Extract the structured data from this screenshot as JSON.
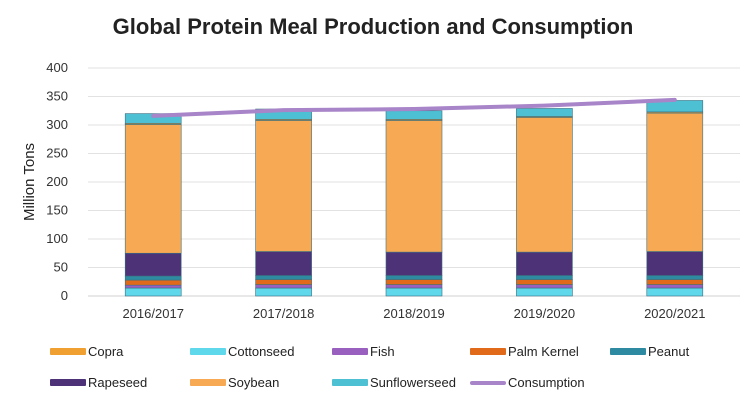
{
  "chart_data": {
    "type": "bar",
    "stacked": true,
    "title": "Global Protein Meal Production and Consumption",
    "xlabel": "",
    "ylabel": "Million Tons",
    "ylim": [
      0,
      400
    ],
    "yticks": [
      0,
      50,
      100,
      150,
      200,
      250,
      300,
      350,
      400
    ],
    "grid": true,
    "legend_position": "bottom",
    "categories": [
      "2016/2017",
      "2017/2018",
      "2018/2019",
      "2019/2020",
      "2020/2021"
    ],
    "stack_order": [
      "Cottonseed",
      "Fish",
      "Palm Kernel",
      "Peanut",
      "Rapeseed",
      "Soybean",
      "Copra",
      "Sunflowerseed"
    ],
    "series": [
      {
        "name": "Copra",
        "color": "#f0a030",
        "values": [
          2,
          2,
          2,
          2,
          2
        ]
      },
      {
        "name": "Cottonseed",
        "color": "#5fd8ec",
        "values": [
          14,
          14,
          14,
          14,
          14
        ]
      },
      {
        "name": "Fish",
        "color": "#9a60c0",
        "values": [
          5,
          6,
          6,
          6,
          6
        ]
      },
      {
        "name": "Palm Kernel",
        "color": "#e06a1a",
        "values": [
          9,
          9,
          9,
          9,
          9
        ]
      },
      {
        "name": "Peanut",
        "color": "#2e8aa0",
        "values": [
          7,
          7,
          7,
          7,
          7
        ]
      },
      {
        "name": "Rapeseed",
        "color": "#4e3278",
        "values": [
          40,
          42,
          41,
          41,
          42
        ]
      },
      {
        "name": "Soybean",
        "color": "#f7a954",
        "values": [
          226,
          230,
          231,
          236,
          243
        ]
      },
      {
        "name": "Sunflowerseed",
        "color": "#4ec0d4",
        "values": [
          17,
          18,
          15,
          14,
          20
        ]
      }
    ],
    "line_series": {
      "name": "Consumption",
      "color": "#a884c8",
      "values": [
        316,
        326,
        328,
        334,
        344
      ]
    }
  },
  "legend": {
    "row1": [
      "Copra",
      "Cottonseed",
      "Fish",
      "Palm Kernel",
      "Peanut"
    ],
    "row2": [
      "Rapeseed",
      "Soybean",
      "Sunflowerseed",
      "Consumption"
    ]
  }
}
